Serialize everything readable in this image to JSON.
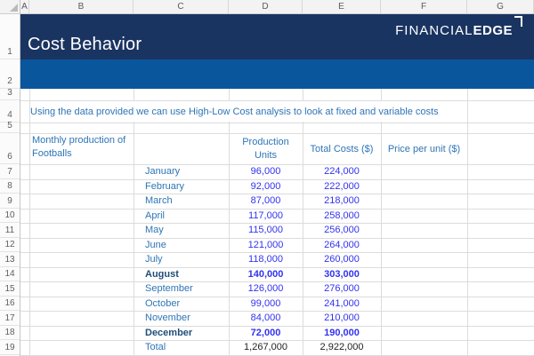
{
  "sheet": {
    "column_headers": [
      "A",
      "B",
      "C",
      "D",
      "E",
      "F",
      "G"
    ],
    "row_numbers": [
      "1",
      "2",
      "3",
      "4",
      "5",
      "6",
      "7",
      "8",
      "9",
      "10",
      "11",
      "12",
      "13",
      "14",
      "15",
      "16",
      "17",
      "18",
      "19"
    ]
  },
  "banner": {
    "title": "Cost Behavior",
    "logo_thin": "FINANCIAL",
    "logo_bold": "EDGE"
  },
  "intro": {
    "text": "Using the data provided we can use High-Low Cost analysis to look at fixed and variable costs"
  },
  "table": {
    "row_header": "Monthly production of Footballs",
    "col_units": "Production Units",
    "col_costs": "Total Costs ($)",
    "col_price": "Price per unit ($)",
    "rows": [
      {
        "month": "January",
        "units": "96,000",
        "costs": "224,000"
      },
      {
        "month": "February",
        "units": "92,000",
        "costs": "222,000"
      },
      {
        "month": "March",
        "units": "87,000",
        "costs": "218,000"
      },
      {
        "month": "April",
        "units": "117,000",
        "costs": "258,000"
      },
      {
        "month": "May",
        "units": "115,000",
        "costs": "256,000"
      },
      {
        "month": "June",
        "units": "121,000",
        "costs": "264,000"
      },
      {
        "month": "July",
        "units": "118,000",
        "costs": "260,000"
      },
      {
        "month": "August",
        "units": "140,000",
        "costs": "303,000"
      },
      {
        "month": "September",
        "units": "126,000",
        "costs": "276,000"
      },
      {
        "month": "October",
        "units": "99,000",
        "costs": "241,000"
      },
      {
        "month": "November",
        "units": "84,000",
        "costs": "210,000"
      },
      {
        "month": "December",
        "units": "72,000",
        "costs": "190,000"
      },
      {
        "month": "Total",
        "units": "1,267,000",
        "costs": "2,922,000"
      }
    ]
  },
  "colors": {
    "banner_dark": "#1A3461",
    "banner_blue": "#0A569C",
    "heading_blue": "#2E75B6",
    "bold_month_navy": "#1F4E79",
    "value_blue": "#3232F0",
    "total_text": "#1F1F1F",
    "gridline": "#DCDCDC"
  }
}
